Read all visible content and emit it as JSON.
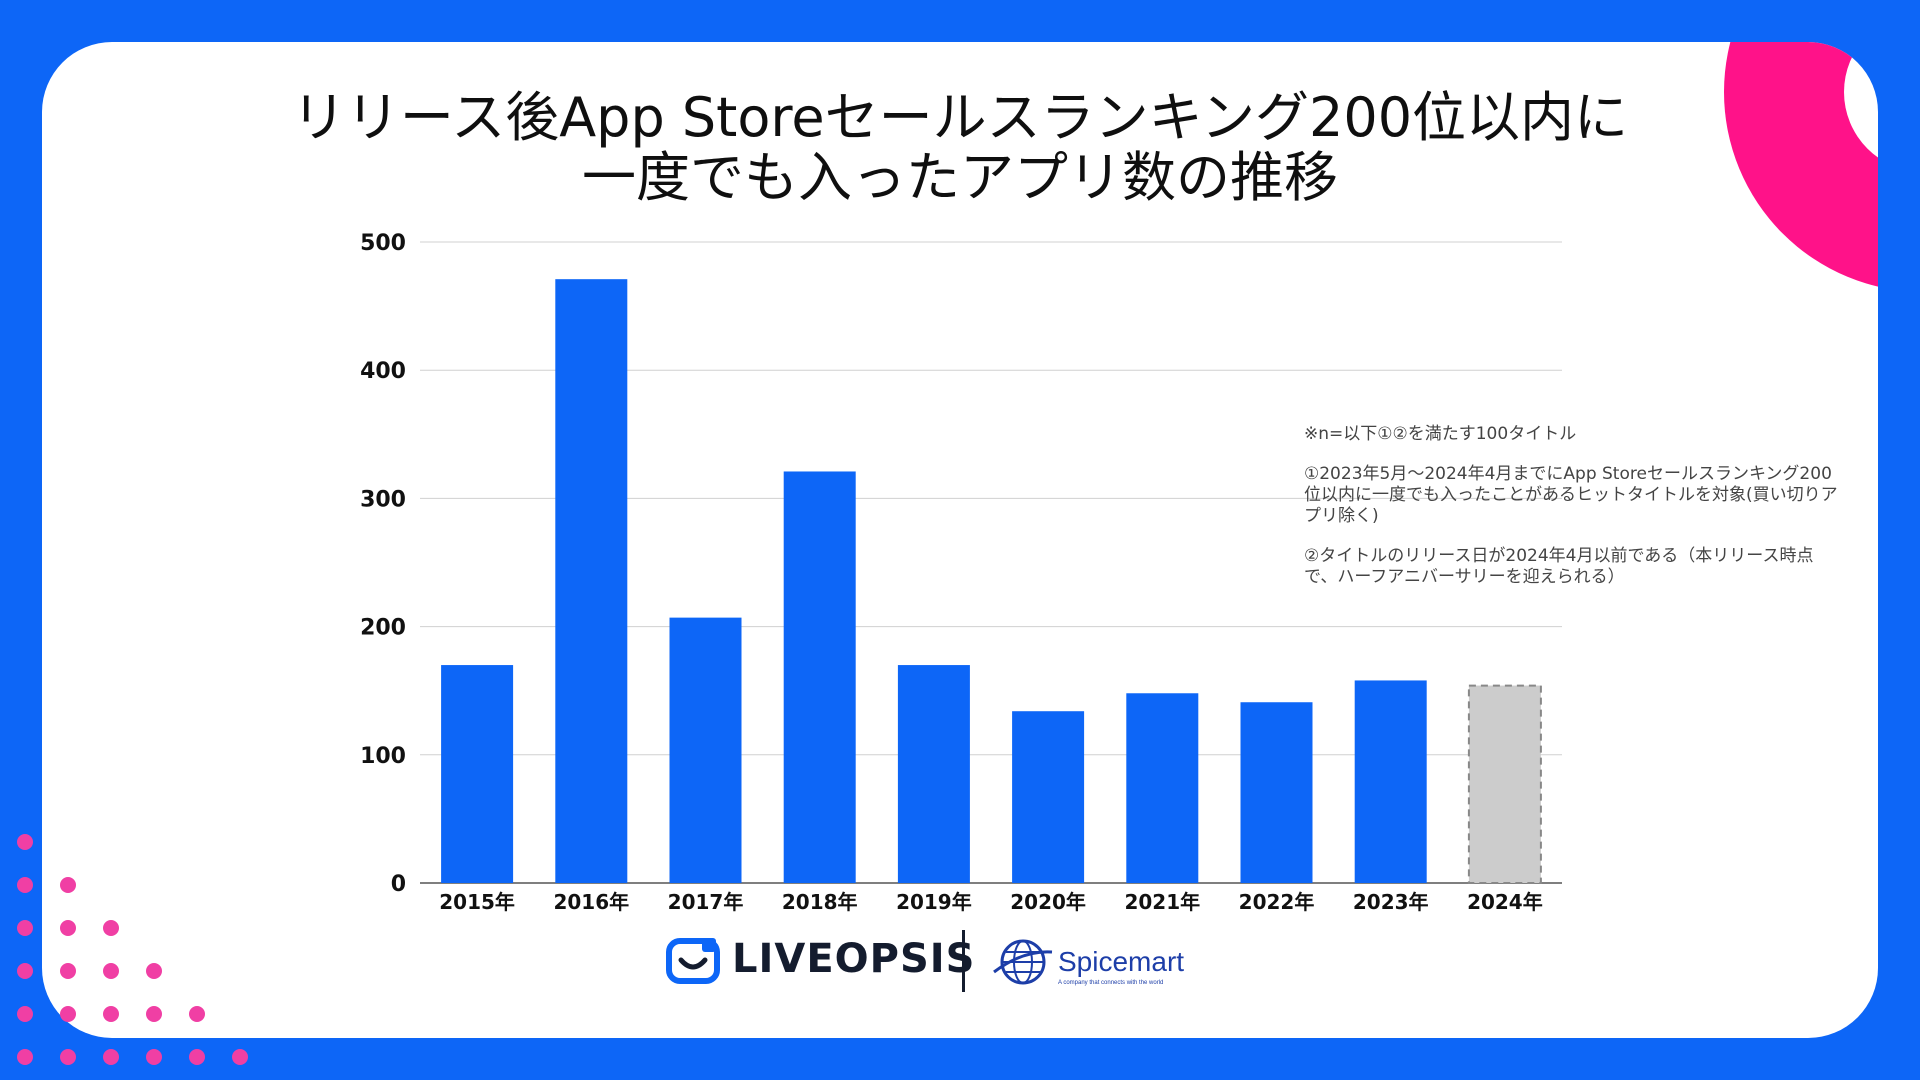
{
  "title": {
    "line1": "リリース後App Storeセールスランキング200位以内に",
    "line2": "一度でも入ったアプリ数の推移"
  },
  "notes": {
    "line1": "※n=以下①②を満たす100タイトル",
    "line2": "①2023年5月〜2024年4月までにApp Storeセールスランキング200位以内に一度でも入ったことがあるヒットタイトルを対象(買い切りアプリ除く)",
    "line3": "②タイトルのリリース日が2024年4月以前である（本リリース時点で、ハーフアニバーサリーを迎えられる）"
  },
  "logos": {
    "liveopsis": "LIVEOPSIS",
    "spicemart": "Spicemart",
    "spicemart_tagline": "A company that connects with the world"
  },
  "colors": {
    "background": "#0d66f7",
    "bar": "#0d66f7",
    "bar_partial": "#cccccc",
    "accent_arc": "#ff1289",
    "dots": "#f03fa4"
  },
  "chart_data": {
    "type": "bar",
    "categories": [
      "2015年",
      "2016年",
      "2017年",
      "2018年",
      "2019年",
      "2020年",
      "2021年",
      "2022年",
      "2023年",
      "2024年"
    ],
    "values": [
      170,
      471,
      207,
      321,
      170,
      134,
      148,
      141,
      158,
      154
    ],
    "partial_categories": [
      "2024年"
    ],
    "ylim": [
      0,
      500
    ],
    "yticks": [
      0,
      100,
      200,
      300,
      400,
      500
    ],
    "grid": true,
    "xlabel": "",
    "ylabel": ""
  }
}
